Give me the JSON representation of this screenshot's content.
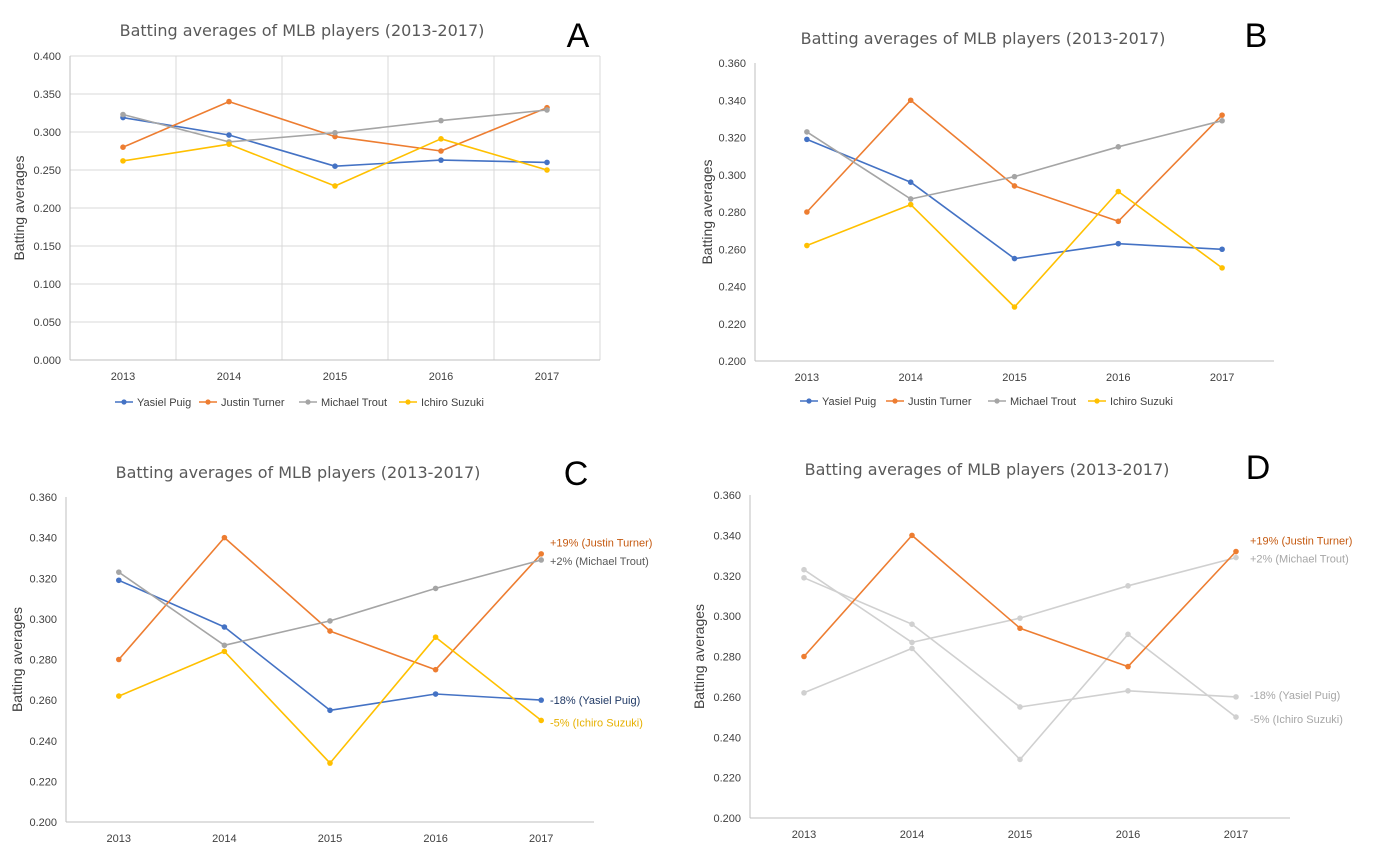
{
  "chart_data": [
    {
      "panel": "A",
      "type": "line",
      "title": "Batting averages of MLB players (2013-2017)",
      "ylabel": "Batting averages",
      "xlabel": "",
      "categories": [
        "2013",
        "2014",
        "2015",
        "2016",
        "2017"
      ],
      "ylim": [
        0,
        0.4
      ],
      "yticks": [
        "0.000",
        "0.050",
        "0.100",
        "0.150",
        "0.200",
        "0.250",
        "0.300",
        "0.350",
        "0.400"
      ],
      "grid": "both",
      "legend": "bottom",
      "series": [
        {
          "name": "Yasiel Puig",
          "color": "#4472c4",
          "values": [
            0.319,
            0.296,
            0.255,
            0.263,
            0.26
          ]
        },
        {
          "name": "Justin Turner",
          "color": "#ed7d31",
          "values": [
            0.28,
            0.34,
            0.294,
            0.275,
            0.332
          ]
        },
        {
          "name": "Michael Trout",
          "color": "#a5a5a5",
          "values": [
            0.323,
            0.287,
            0.299,
            0.315,
            0.329
          ]
        },
        {
          "name": "Ichiro Suzuki",
          "color": "#ffc000",
          "values": [
            0.262,
            0.284,
            0.229,
            0.291,
            0.25
          ]
        }
      ]
    },
    {
      "panel": "B",
      "type": "line",
      "title": "Batting averages of MLB players (2013-2017)",
      "ylabel": "Batting averages",
      "xlabel": "",
      "categories": [
        "2013",
        "2014",
        "2015",
        "2016",
        "2017"
      ],
      "ylim": [
        0.2,
        0.36
      ],
      "yticks": [
        "0.200",
        "0.220",
        "0.240",
        "0.260",
        "0.280",
        "0.300",
        "0.320",
        "0.340",
        "0.360"
      ],
      "grid": "none",
      "legend": "bottom",
      "series": [
        {
          "name": "Yasiel Puig",
          "color": "#4472c4",
          "values": [
            0.319,
            0.296,
            0.255,
            0.263,
            0.26
          ]
        },
        {
          "name": "Justin Turner",
          "color": "#ed7d31",
          "values": [
            0.28,
            0.34,
            0.294,
            0.275,
            0.332
          ]
        },
        {
          "name": "Michael Trout",
          "color": "#a5a5a5",
          "values": [
            0.323,
            0.287,
            0.299,
            0.315,
            0.329
          ]
        },
        {
          "name": "Ichiro Suzuki",
          "color": "#ffc000",
          "values": [
            0.262,
            0.284,
            0.229,
            0.291,
            0.25
          ]
        }
      ]
    },
    {
      "panel": "C",
      "type": "line",
      "title": "Batting averages of MLB players (2013-2017)",
      "ylabel": "Batting averages",
      "xlabel": "",
      "categories": [
        "2013",
        "2014",
        "2015",
        "2016",
        "2017"
      ],
      "ylim": [
        0.2,
        0.36
      ],
      "yticks": [
        "0.200",
        "0.220",
        "0.240",
        "0.260",
        "0.280",
        "0.300",
        "0.320",
        "0.340",
        "0.360"
      ],
      "grid": "none",
      "legend": "none",
      "series": [
        {
          "name": "Yasiel Puig",
          "color": "#4472c4",
          "values": [
            0.319,
            0.296,
            0.255,
            0.263,
            0.26
          ],
          "label": "-18% (Yasiel Puig)",
          "label_color": "#1f3864"
        },
        {
          "name": "Justin Turner",
          "color": "#ed7d31",
          "values": [
            0.28,
            0.34,
            0.294,
            0.275,
            0.332
          ],
          "label": "+19% (Justin Turner)",
          "label_color": "#c55a11"
        },
        {
          "name": "Michael Trout",
          "color": "#a5a5a5",
          "values": [
            0.323,
            0.287,
            0.299,
            0.315,
            0.329
          ],
          "label": "+2% (Michael Trout)",
          "label_color": "#595959"
        },
        {
          "name": "Ichiro Suzuki",
          "color": "#ffc000",
          "values": [
            0.262,
            0.284,
            0.229,
            0.291,
            0.25
          ],
          "label": "-5% (Ichiro Suzuki)",
          "label_color": "#e6b000"
        }
      ]
    },
    {
      "panel": "D",
      "type": "line",
      "title": "Batting averages of MLB players (2013-2017)",
      "ylabel": "Batting averages",
      "xlabel": "",
      "categories": [
        "2013",
        "2014",
        "2015",
        "2016",
        "2017"
      ],
      "ylim": [
        0.2,
        0.36
      ],
      "yticks": [
        "0.200",
        "0.220",
        "0.240",
        "0.260",
        "0.280",
        "0.300",
        "0.320",
        "0.340",
        "0.360"
      ],
      "grid": "none",
      "legend": "none",
      "series": [
        {
          "name": "Yasiel Puig",
          "color": "#d0d0d0",
          "values": [
            0.319,
            0.296,
            0.255,
            0.263,
            0.26
          ],
          "label": "-18% (Yasiel Puig)",
          "label_color": "#a6a6a6"
        },
        {
          "name": "Michael Trout",
          "color": "#d0d0d0",
          "values": [
            0.323,
            0.287,
            0.299,
            0.315,
            0.329
          ],
          "label": "+2% (Michael Trout)",
          "label_color": "#a6a6a6"
        },
        {
          "name": "Ichiro Suzuki",
          "color": "#d0d0d0",
          "values": [
            0.262,
            0.284,
            0.229,
            0.291,
            0.25
          ],
          "label": "-5% (Ichiro Suzuki)",
          "label_color": "#a6a6a6"
        },
        {
          "name": "Justin Turner",
          "color": "#ed7d31",
          "values": [
            0.28,
            0.34,
            0.294,
            0.275,
            0.332
          ],
          "label": "+19% (Justin Turner)",
          "label_color": "#c55a11"
        }
      ]
    }
  ]
}
